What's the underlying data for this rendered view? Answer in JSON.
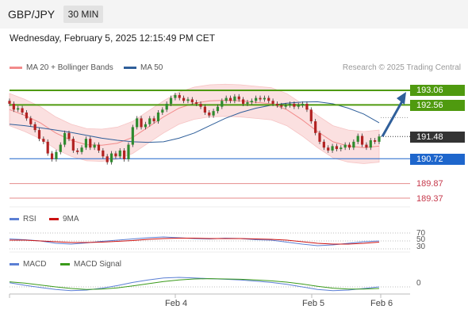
{
  "header": {
    "pair": "GBP/JPY",
    "timeframe": "30 MIN"
  },
  "datetime": "Wednesday, February 5, 2025 12:15:49 PM CET",
  "legend_main": [
    {
      "label": "MA 20 + Bollinger Bands",
      "color": "#f28b8b"
    },
    {
      "label": "MA 50",
      "color": "#2f5f9a"
    }
  ],
  "credit": "Research © 2025 Trading Central",
  "legend_rsi": [
    {
      "label": "RSI",
      "color": "#5b7fd4"
    },
    {
      "label": "9MA",
      "color": "#cc1111"
    }
  ],
  "legend_macd": [
    {
      "label": "MACD",
      "color": "#5b7fd4"
    },
    {
      "label": "MACD Signal",
      "color": "#3a9a1a"
    }
  ],
  "levels": {
    "resistance2": {
      "label": "193.06",
      "value": 193.06,
      "color": "#4f9a0f"
    },
    "resistance1": {
      "label": "192.56",
      "value": 192.56,
      "color": "#4f9a0f"
    },
    "last": {
      "label": "191.48",
      "value": 191.48,
      "color": "#333333"
    },
    "pivot": {
      "label": "190.72",
      "value": 190.72,
      "color": "#1e66cc"
    },
    "support1": {
      "label": "189.87",
      "value": 189.87,
      "color": "#e58b8b"
    },
    "support2": {
      "label": "189.37",
      "value": 189.37,
      "color": "#e58b8b"
    }
  },
  "rsi_ticks": [
    "70",
    "50",
    "30"
  ],
  "macd_ticks": [
    "0"
  ],
  "x_labels": [
    "Feb 4",
    "Feb 5",
    "Feb 6"
  ],
  "chart_data": {
    "type": "candlestick",
    "instrument": "GBP/JPY",
    "timeframe": "30 MIN",
    "ylim": [
      189.2,
      193.4
    ],
    "candles_close": [
      192.6,
      192.4,
      192.45,
      192.3,
      192.1,
      191.9,
      191.7,
      191.4,
      191.3,
      190.9,
      190.7,
      190.95,
      191.2,
      191.6,
      191.4,
      191.0,
      190.95,
      191.1,
      191.4,
      191.1,
      191.2,
      191.0,
      190.8,
      190.6,
      190.9,
      190.8,
      191.0,
      190.7,
      191.2,
      191.8,
      192.1,
      191.8,
      191.9,
      192.1,
      192.0,
      192.3,
      192.4,
      192.6,
      192.8,
      192.9,
      192.8,
      192.7,
      192.75,
      192.65,
      192.6,
      192.5,
      192.3,
      192.2,
      192.35,
      192.5,
      192.7,
      192.8,
      192.7,
      192.85,
      192.75,
      192.6,
      192.65,
      192.7,
      192.8,
      192.75,
      192.8,
      192.7,
      192.6,
      192.55,
      192.5,
      192.55,
      192.6,
      192.5,
      192.55,
      192.6,
      192.4,
      192.0,
      191.6,
      191.3,
      191.1,
      191.0,
      191.15,
      191.05,
      191.1,
      191.2,
      191.1,
      191.3,
      191.5,
      191.2,
      191.1,
      191.35,
      191.3,
      191.48
    ],
    "ma50": [
      191.9,
      191.85,
      191.78,
      191.7,
      191.62,
      191.52,
      191.42,
      191.35,
      191.3,
      191.28,
      191.3,
      191.42,
      191.6,
      191.85,
      192.1,
      192.3,
      192.45,
      192.55,
      192.62,
      192.66,
      192.67,
      192.6,
      192.45,
      192.25,
      191.95
    ],
    "ma20": [
      192.4,
      192.2,
      191.95,
      191.6,
      191.35,
      191.2,
      191.18,
      191.25,
      191.45,
      191.8,
      192.15,
      192.45,
      192.62,
      192.7,
      192.72,
      192.7,
      192.65,
      192.6,
      192.4,
      192.05,
      191.65,
      191.3,
      191.15,
      191.1,
      191.15
    ],
    "rsi": [
      55,
      53,
      50,
      44,
      42,
      45,
      49,
      52,
      55,
      58,
      60,
      58,
      56,
      55,
      57,
      56,
      53,
      52,
      47,
      42,
      38,
      40,
      44,
      48,
      50
    ],
    "rsi_ma": [
      52,
      52,
      50,
      48,
      46,
      46,
      47,
      49,
      51,
      54,
      56,
      57,
      57,
      56,
      56,
      56,
      55,
      54,
      52,
      48,
      44,
      42,
      42,
      44,
      47
    ],
    "macd": [
      0.03,
      -0.05,
      -0.12,
      -0.18,
      -0.22,
      -0.2,
      -0.14,
      -0.06,
      0.04,
      0.12,
      0.18,
      0.2,
      0.18,
      0.16,
      0.14,
      0.12,
      0.08,
      0.04,
      -0.02,
      -0.1,
      -0.18,
      -0.22,
      -0.2,
      -0.15,
      -0.1
    ],
    "macd_signal": [
      0.06,
      0.02,
      -0.04,
      -0.1,
      -0.15,
      -0.18,
      -0.17,
      -0.13,
      -0.07,
      0.0,
      0.07,
      0.12,
      0.15,
      0.16,
      0.15,
      0.14,
      0.12,
      0.09,
      0.05,
      -0.01,
      -0.08,
      -0.14,
      -0.17,
      -0.17,
      -0.15
    ],
    "forecast_arrow": {
      "from": 191.48,
      "to": 193.06
    }
  }
}
